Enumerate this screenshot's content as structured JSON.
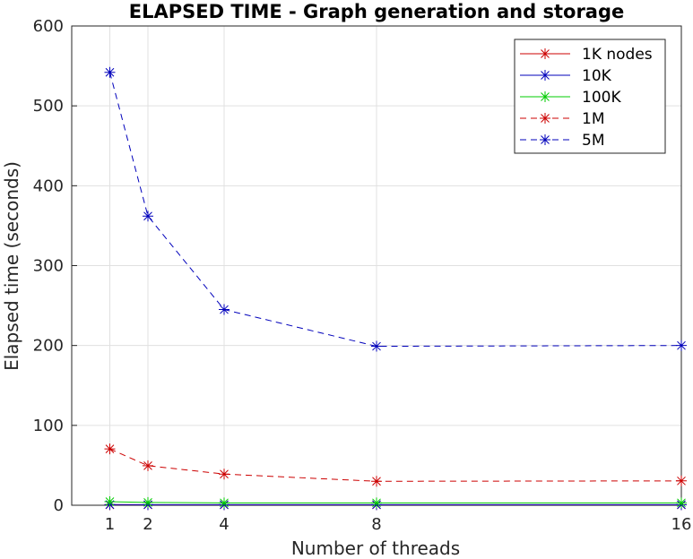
{
  "chart_data": {
    "type": "line",
    "title": "ELAPSED TIME - Graph generation and storage",
    "xlabel": "Number of threads",
    "ylabel": "Elapsed time (seconds)",
    "x": [
      1,
      2,
      4,
      8,
      16
    ],
    "xlim": [
      0,
      16
    ],
    "ylim": [
      0,
      600
    ],
    "xticks": [
      1,
      2,
      4,
      8,
      16
    ],
    "yticks": [
      0,
      100,
      200,
      300,
      400,
      500,
      600
    ],
    "grid": true,
    "legend_position": "top-right",
    "series": [
      {
        "name": "1K nodes",
        "color": "#cc0000",
        "style": "solid",
        "marker": "asterisk",
        "values": [
          0.5,
          0.5,
          0.5,
          0.5,
          0.5
        ]
      },
      {
        "name": "10K",
        "color": "#0000bb",
        "style": "solid",
        "marker": "asterisk",
        "values": [
          0.8,
          0.7,
          0.7,
          0.7,
          0.7
        ]
      },
      {
        "name": "100K",
        "color": "#00cc00",
        "style": "solid",
        "marker": "asterisk",
        "values": [
          4.5,
          3.5,
          3,
          3,
          3
        ]
      },
      {
        "name": "1M",
        "color": "#cc0000",
        "style": "dashed",
        "marker": "asterisk",
        "values": [
          70.5,
          49.5,
          39,
          30,
          30.5
        ]
      },
      {
        "name": "5M",
        "color": "#0000bb",
        "style": "dashed",
        "marker": "asterisk",
        "values": [
          542,
          362,
          245,
          199,
          200
        ]
      }
    ]
  }
}
